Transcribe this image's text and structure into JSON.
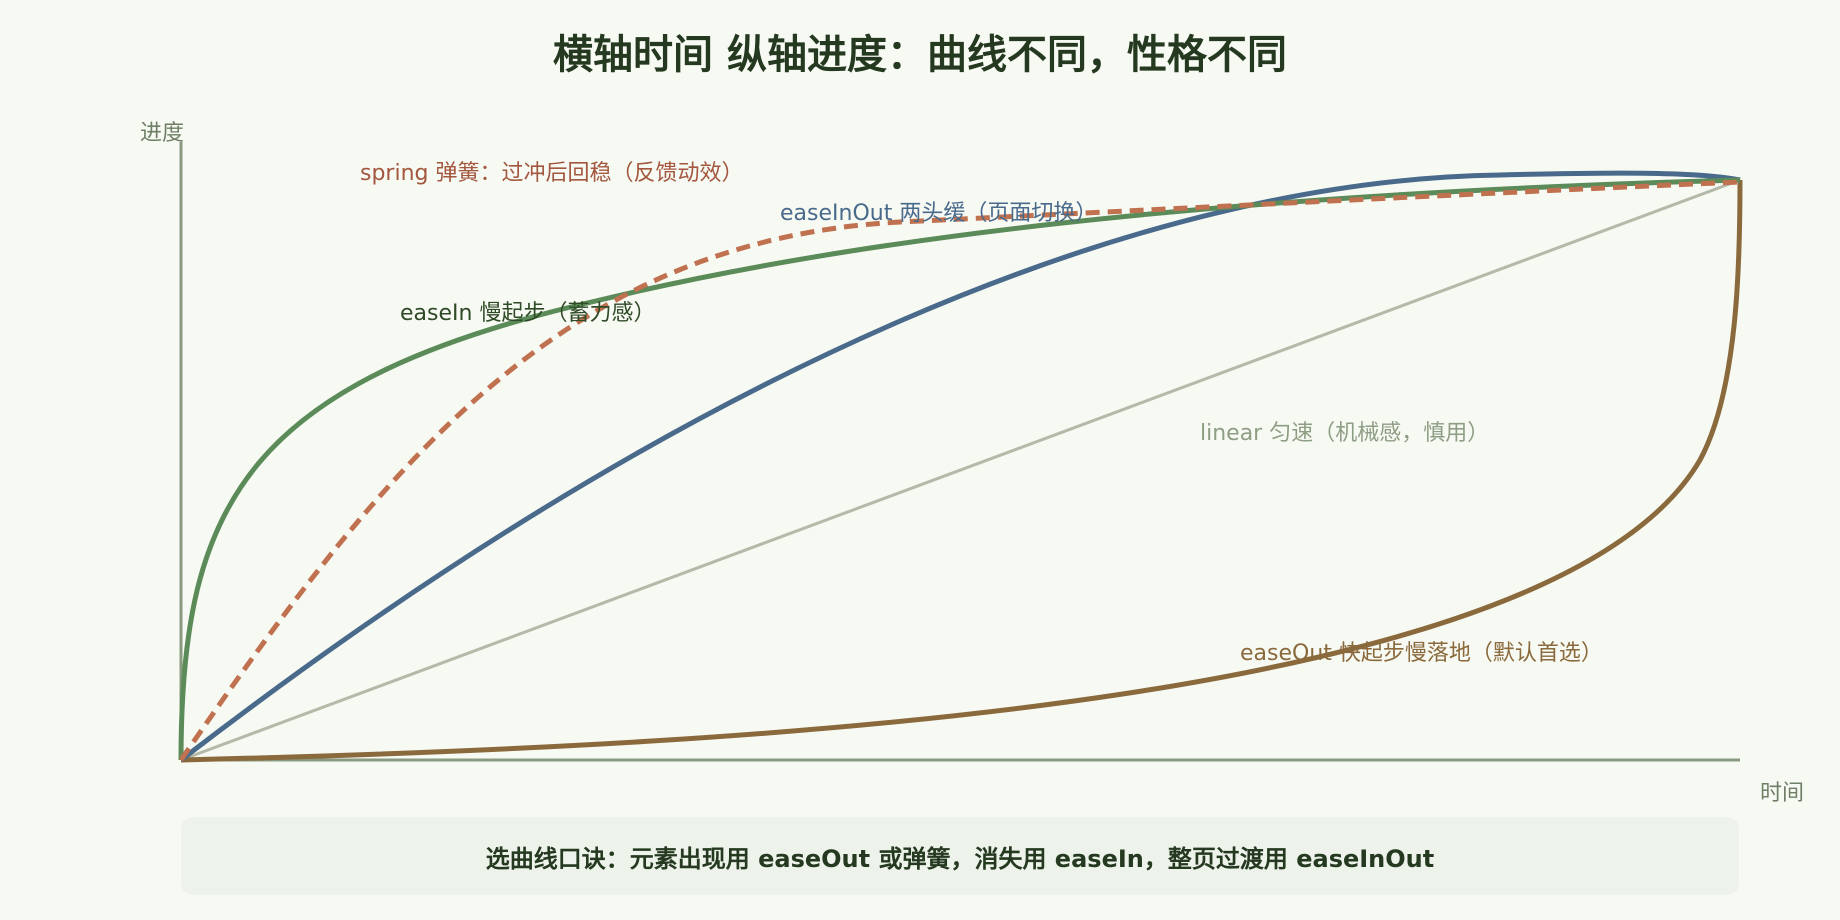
{
  "title": "横轴时间 纵轴进度：曲线不同，性格不同",
  "axes": {
    "y_label": "进度",
    "x_label": "时间"
  },
  "curves": {
    "spring": {
      "label": "spring 弹簧：过冲后回稳（反馈动效）",
      "color": "#c0714f",
      "dashed": true
    },
    "easeInOut": {
      "label": "easeInOut 两头缓（页面切换）",
      "color": "#4a6a8c"
    },
    "easeIn": {
      "label": "easeIn 慢起步（蓄力感）",
      "color": "#5b8b58"
    },
    "linear": {
      "label": "linear 匀速（机械感，慎用）",
      "color": "#b3baa8"
    },
    "easeOut": {
      "label": "easeOut 快起步慢落地（默认首选）",
      "color": "#8a6a3c"
    }
  },
  "axis_color": "#8a9a80",
  "footer": "选曲线口诀：元素出现用 easeOut 或弹簧，消失用 easeIn，整页过渡用 easeInOut"
}
